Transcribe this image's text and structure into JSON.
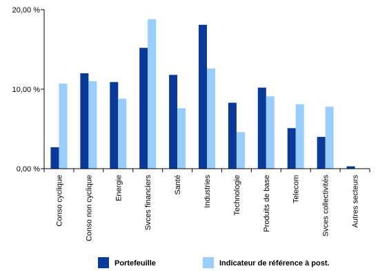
{
  "chart_data": {
    "type": "bar",
    "categories": [
      "Conso cyclique",
      "Conso non cyclique",
      "Energie",
      "Svces financiers",
      "Santé",
      "Industries",
      "Technologie",
      "Produits de base",
      "Telecom",
      "Svces collectivités",
      "Autres secteurs"
    ],
    "series": [
      {
        "name": "Portefeuille",
        "color": "#0a3a99",
        "values": [
          2.7,
          12.0,
          10.9,
          15.2,
          11.8,
          18.1,
          8.3,
          10.2,
          5.1,
          4.0,
          0.3
        ]
      },
      {
        "name": "Indicateur de référence à post.",
        "color": "#99ccff",
        "values": [
          10.7,
          11.0,
          8.8,
          18.8,
          7.6,
          12.6,
          4.6,
          9.1,
          8.1,
          7.8,
          0.0
        ]
      }
    ],
    "yticks": [
      "0,00 %",
      "10,00 %",
      "20,00 %"
    ],
    "ytick_values": [
      0,
      10,
      20
    ],
    "ylim": [
      0,
      20
    ],
    "grid": false,
    "legend_position": "bottom"
  }
}
